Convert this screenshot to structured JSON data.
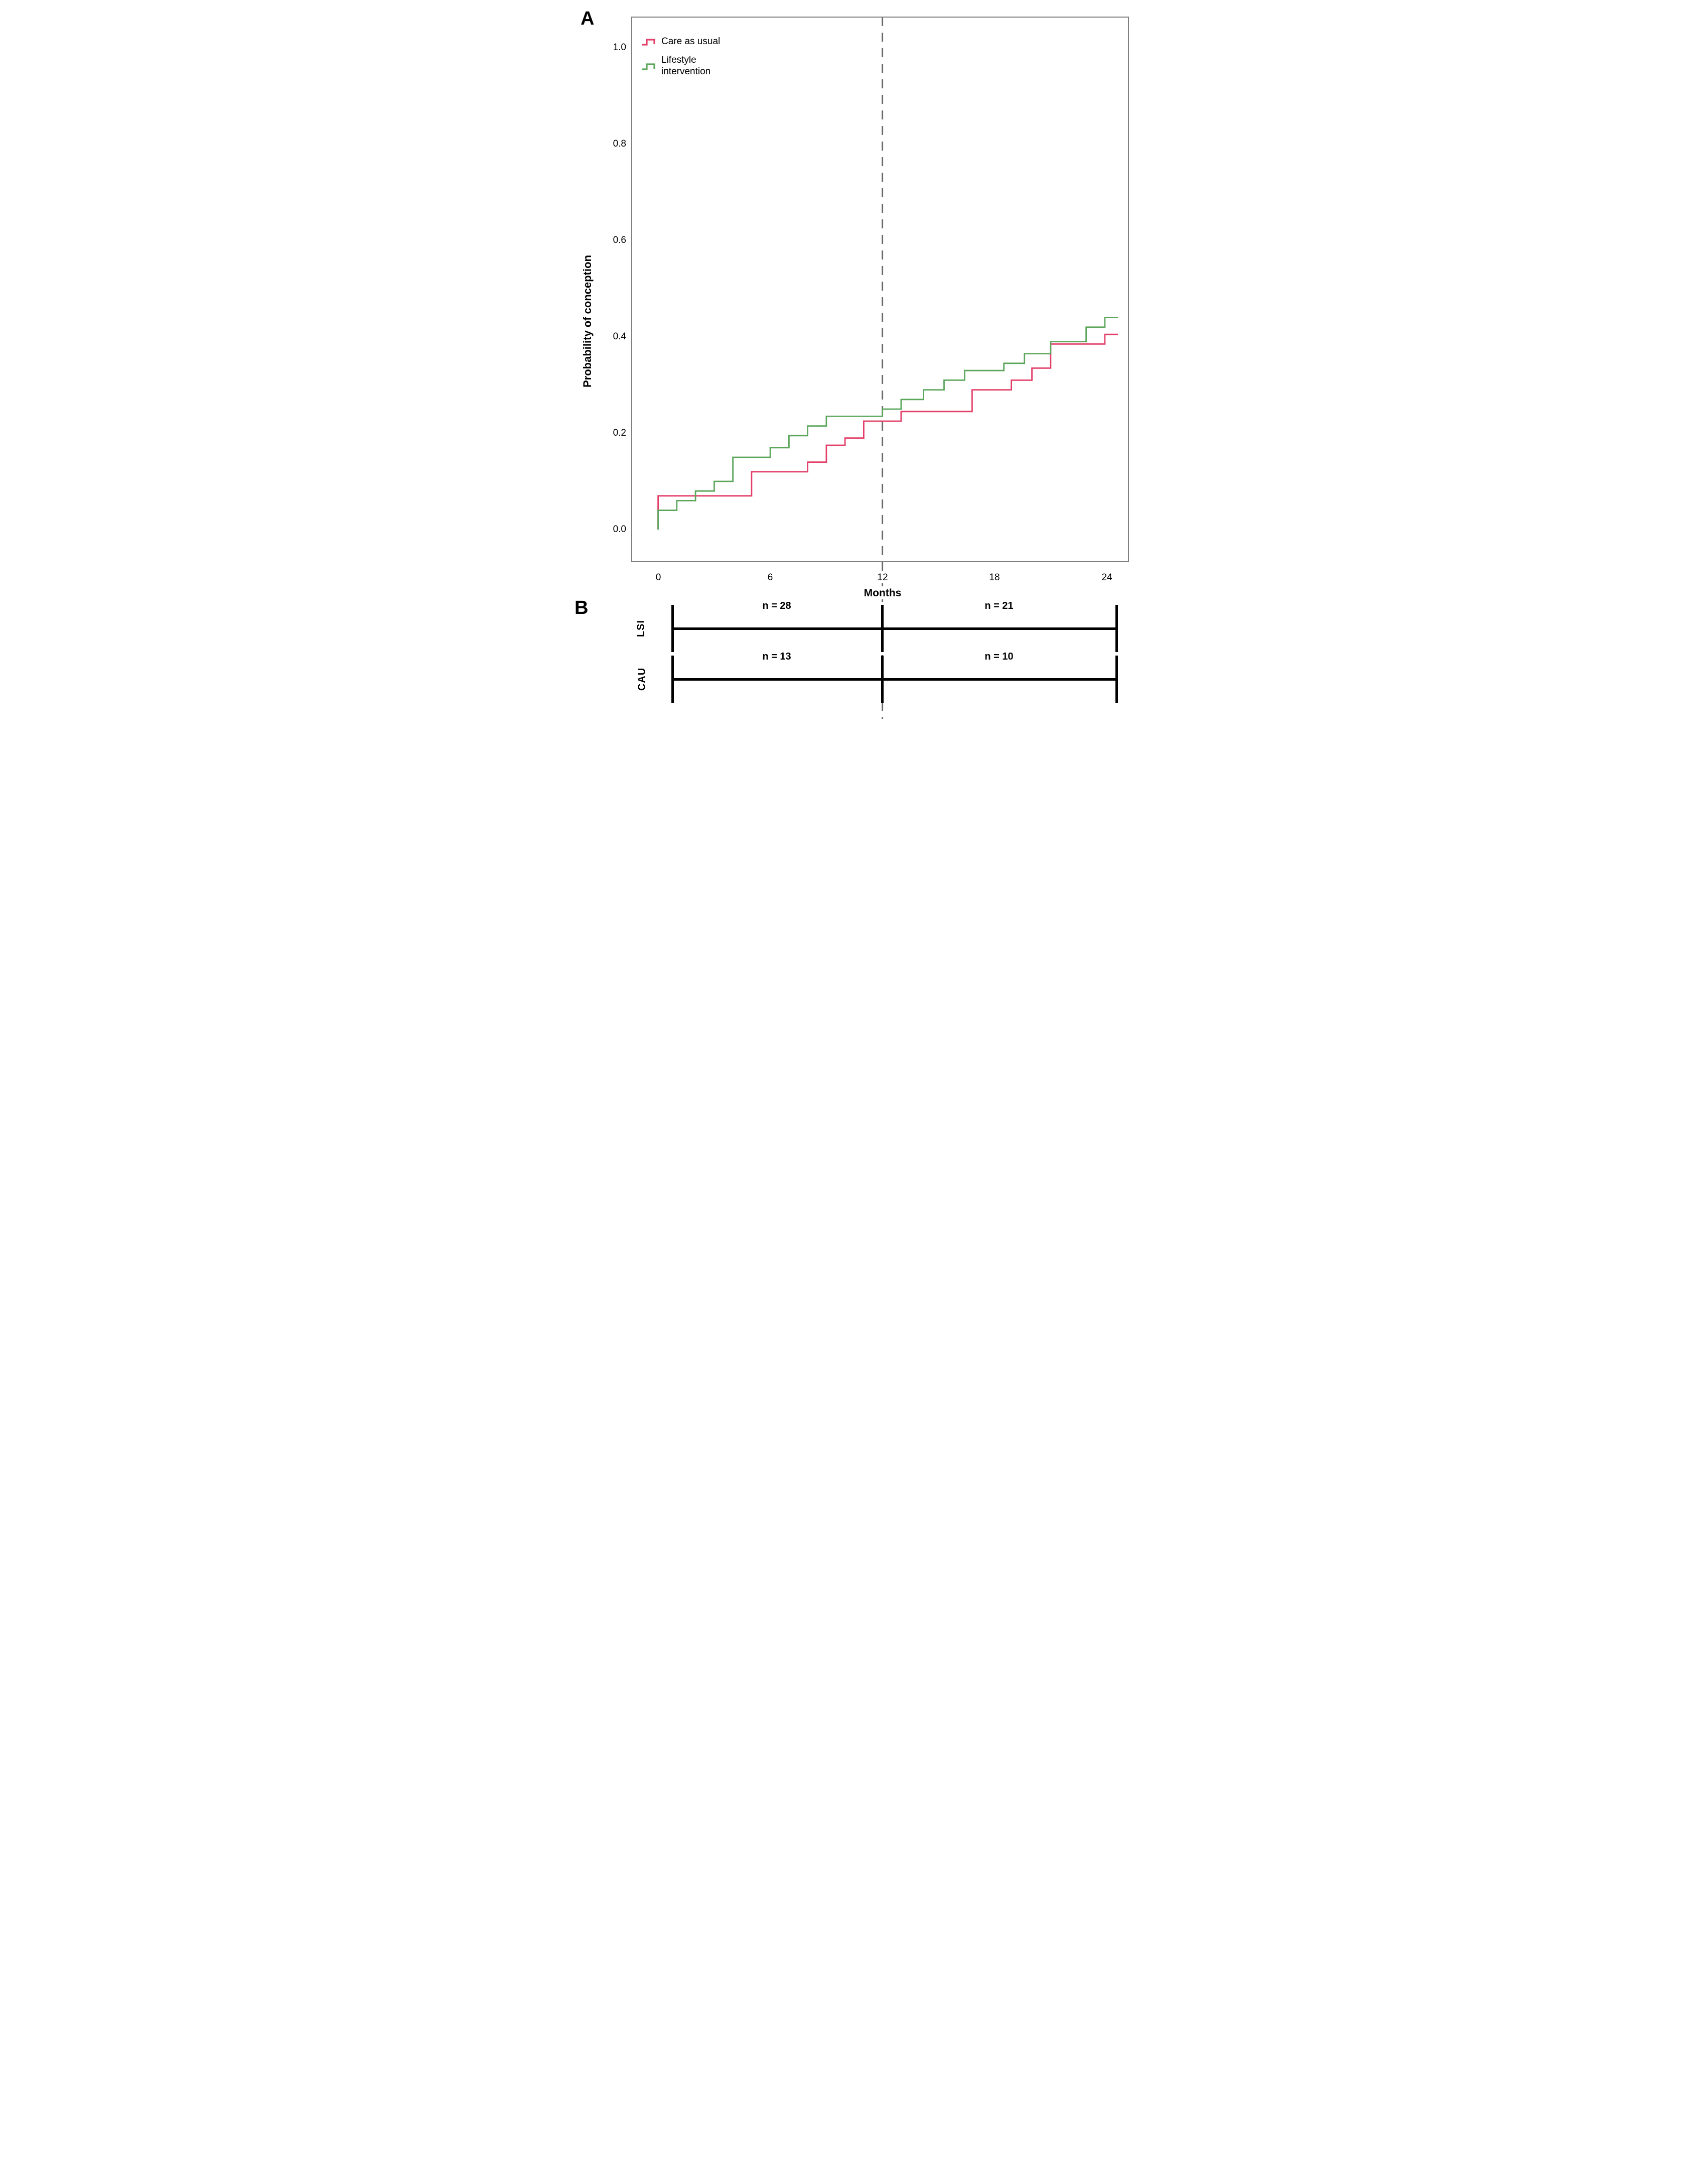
{
  "figure": {
    "panel_a_label": "A",
    "panel_b_label": "B",
    "colors": {
      "care_as_usual": "#e33f68",
      "lifestyle_intervention": "#5ca65c",
      "reference_dash": "#6b6b6b",
      "plot_border": "#7f7f7f",
      "panel_b_lines": "#000000"
    }
  },
  "chart_data": {
    "type": "line",
    "subtype": "kaplan-meier-cumulative-incidence-steps",
    "title": "",
    "xlabel": "Months",
    "ylabel": "Probability of conception",
    "xlim": [
      -1.45,
      25.2
    ],
    "ylim": [
      -0.068,
      1.077
    ],
    "xticks": [
      0,
      6,
      12,
      18,
      24
    ],
    "xtick_labels": [
      "0",
      "6",
      "12",
      "18",
      "24"
    ],
    "yticks": [
      1.0,
      0.8,
      0.6,
      0.4,
      0.2,
      0.0
    ],
    "ytick_labels": [
      "1.0",
      "0.8",
      "0.6",
      "0.4",
      "0.2",
      "0.0"
    ],
    "grid": false,
    "legend_position": "top-left-inside",
    "reference_line_x": 12,
    "series": [
      {
        "name": "Care as usual",
        "color": "#e33f68",
        "steps": [
          [
            0,
            0
          ],
          [
            0,
            0.07
          ],
          [
            5,
            0.12
          ],
          [
            8,
            0.14
          ],
          [
            9,
            0.175
          ],
          [
            10,
            0.19
          ],
          [
            11,
            0.225
          ],
          [
            13,
            0.245
          ],
          [
            16.8,
            0.29
          ],
          [
            18.9,
            0.31
          ],
          [
            20,
            0.335
          ],
          [
            21,
            0.385
          ],
          [
            23.9,
            0.405
          ],
          [
            24.6,
            0.405
          ]
        ]
      },
      {
        "name": "Lifestyle intervention",
        "color": "#5ca65c",
        "steps": [
          [
            0,
            0
          ],
          [
            0,
            0.04
          ],
          [
            1,
            0.06
          ],
          [
            2,
            0.08
          ],
          [
            3,
            0.1
          ],
          [
            4,
            0.15
          ],
          [
            6,
            0.17
          ],
          [
            7,
            0.195
          ],
          [
            8,
            0.215
          ],
          [
            9,
            0.235
          ],
          [
            12,
            0.25
          ],
          [
            13,
            0.27
          ],
          [
            14.2,
            0.29
          ],
          [
            15.3,
            0.31
          ],
          [
            16.4,
            0.33
          ],
          [
            18.5,
            0.345
          ],
          [
            19.6,
            0.365
          ],
          [
            21,
            0.39
          ],
          [
            22.9,
            0.42
          ],
          [
            23.9,
            0.44
          ],
          [
            24.6,
            0.44
          ]
        ]
      }
    ]
  },
  "legend": {
    "items": [
      {
        "label": "Care as usual",
        "color": "#e33f68"
      },
      {
        "label_line1": "Lifestyle",
        "label_line2": "intervention",
        "color": "#5ca65c"
      }
    ]
  },
  "panel_b": {
    "rows": [
      {
        "group": "LSI",
        "left_count": "n = 28",
        "right_count": "n = 21"
      },
      {
        "group": "CAU",
        "left_count": "n = 13",
        "right_count": "n = 10"
      }
    ]
  }
}
